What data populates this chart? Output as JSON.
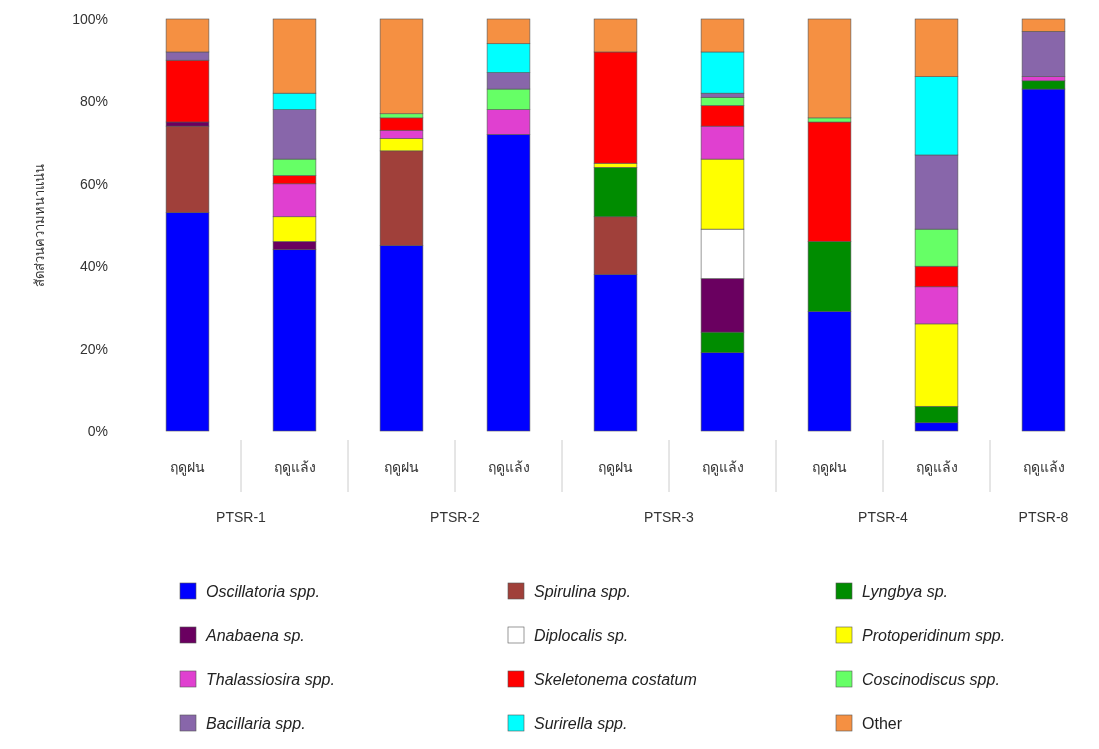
{
  "chart_data": {
    "type": "bar",
    "stacked": true,
    "ylabel": "สัดส่วนความหนาแน่น",
    "categories": [
      "ฤดูฝน",
      "ฤดูแล้ง",
      "ฤดูฝน",
      "ฤดูแล้ง",
      "ฤดูฝน",
      "ฤดูแล้ง",
      "ฤดูฝน",
      "ฤดูแล้ง",
      "ฤดูแล้ง"
    ],
    "annotations": [
      "PTSR-1",
      "PTSR-2",
      "PTSR-3",
      "PTSR-4",
      "PTSR-8"
    ],
    "ylim": [
      0,
      100
    ],
    "yticks": [
      {
        "value": 0,
        "label": "0%"
      },
      {
        "value": 20,
        "label": "20%"
      },
      {
        "value": 40,
        "label": "40%"
      },
      {
        "value": 60,
        "label": "60%"
      },
      {
        "value": 80,
        "label": "80%"
      },
      {
        "value": 100,
        "label": "100%"
      }
    ],
    "legend": "bottom",
    "series": [
      {
        "name": "*Oscillatoria spp.*",
        "color": "#0000ff",
        "values": [
          53,
          44,
          45,
          72,
          38,
          19,
          29,
          2,
          83
        ]
      },
      {
        "name": "*Spirulina spp.*",
        "color": "#a0403a",
        "values": [
          21,
          0,
          23,
          0,
          14,
          0,
          0,
          0,
          0
        ]
      },
      {
        "name": "*Lyngbya sp.*",
        "color": "#008c00",
        "values": [
          0,
          0,
          0,
          0,
          12,
          5,
          17,
          4,
          2
        ]
      },
      {
        "name": "*Anabaena sp.*",
        "color": "#6a0060",
        "values": [
          1,
          2,
          0,
          0,
          0,
          13,
          0,
          0,
          0
        ]
      },
      {
        "name": "*Diplocalis sp.*",
        "color": "#ffffff",
        "values": [
          0,
          0,
          0,
          0,
          0,
          12,
          0,
          0,
          0
        ]
      },
      {
        "name": "*Protoperidinum spp.*",
        "color": "#ffff00",
        "values": [
          0,
          6,
          3,
          0,
          1,
          17,
          0,
          20,
          0
        ]
      },
      {
        "name": "*Thalassiosira spp.*",
        "color": "#e040d0",
        "values": [
          0,
          8,
          2,
          6,
          0,
          8,
          0,
          9,
          1
        ]
      },
      {
        "name": "*Skeletonema costatum*",
        "color": "#ff0000",
        "values": [
          15,
          2,
          3,
          0,
          27,
          5,
          29,
          5,
          0
        ]
      },
      {
        "name": "*Coscinodiscus spp.*",
        "color": "#66ff66",
        "values": [
          0,
          4,
          1,
          5,
          0,
          2,
          1,
          9,
          0
        ]
      },
      {
        "name": "*Bacillaria spp.*",
        "color": "#8866aa",
        "values": [
          2,
          12,
          0,
          4,
          0,
          1,
          0,
          18,
          11
        ]
      },
      {
        "name": "*Surirella spp.*",
        "color": "#00ffff",
        "values": [
          0,
          4,
          0,
          7,
          0,
          10,
          0,
          19,
          0
        ]
      },
      {
        "name": "Other",
        "color": "#f59042",
        "values": [
          8,
          18,
          23,
          6,
          8,
          8,
          24,
          14,
          3
        ]
      }
    ]
  }
}
